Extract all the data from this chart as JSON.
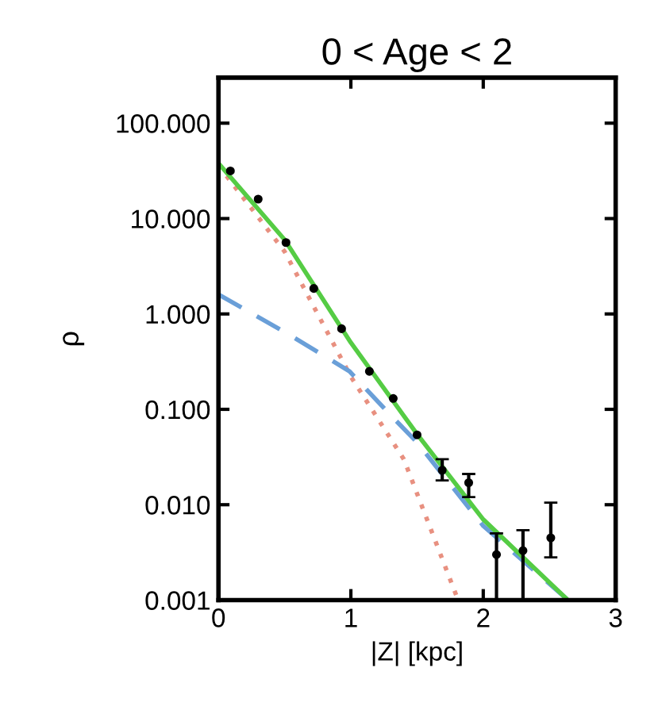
{
  "chart_data": {
    "type": "line",
    "title": "0 < Age < 2",
    "xlabel": "|Z| [kpc]",
    "ylabel": "ρ",
    "log": "y",
    "xlim": [
      0,
      3
    ],
    "xticks": [
      0,
      1,
      2,
      3
    ],
    "ylim": [
      0.001,
      300
    ],
    "yticks": [
      {
        "value": 0.001,
        "label": "0.001"
      },
      {
        "value": 0.01,
        "label": "0.010"
      },
      {
        "value": 0.1,
        "label": "0.100"
      },
      {
        "value": 1,
        "label": "1.000"
      },
      {
        "value": 10,
        "label": "10.000"
      },
      {
        "value": 100,
        "label": "100.000"
      }
    ],
    "grid": false,
    "legend": false,
    "series": [
      {
        "color": "#e89080",
        "line_style": "dotted",
        "x": [
          0,
          0.5,
          1.0,
          1.4,
          1.81
        ],
        "values": [
          36,
          4.5,
          0.22,
          0.03,
          0.001
        ]
      },
      {
        "color": "#6a9fd8",
        "line_style": "dashed",
        "x": [
          0,
          0.54,
          0.99,
          1.29,
          1.5,
          2.0,
          2.64
        ],
        "values": [
          1.6,
          0.6,
          0.25,
          0.09,
          0.045,
          0.006,
          0.001
        ]
      },
      {
        "color": "#55cc44",
        "line_style": "solid",
        "x": [
          0,
          0.5,
          1.0,
          1.5,
          2.0,
          2.64
        ],
        "values": [
          38,
          6,
          0.5,
          0.055,
          0.007,
          0.001
        ]
      },
      {
        "type": "scatter",
        "color": "#000000",
        "marker": "circle",
        "x": [
          0.09,
          0.3,
          0.51,
          0.72,
          0.93,
          1.14,
          1.32,
          1.5,
          1.69,
          1.89,
          2.1,
          2.3,
          2.51
        ],
        "values": [
          31.6,
          16,
          5.6,
          1.85,
          0.7,
          0.25,
          0.13,
          0.054,
          0.023,
          0.017,
          0.003,
          0.0033,
          0.0045
        ],
        "errors": [
          null,
          null,
          null,
          null,
          null,
          null,
          null,
          null,
          [
            0.018,
            0.03
          ],
          [
            0.012,
            0.021
          ],
          [
            0.001,
            0.005
          ],
          [
            0.001,
            0.0054
          ],
          [
            0.0028,
            0.0105
          ]
        ]
      }
    ]
  }
}
